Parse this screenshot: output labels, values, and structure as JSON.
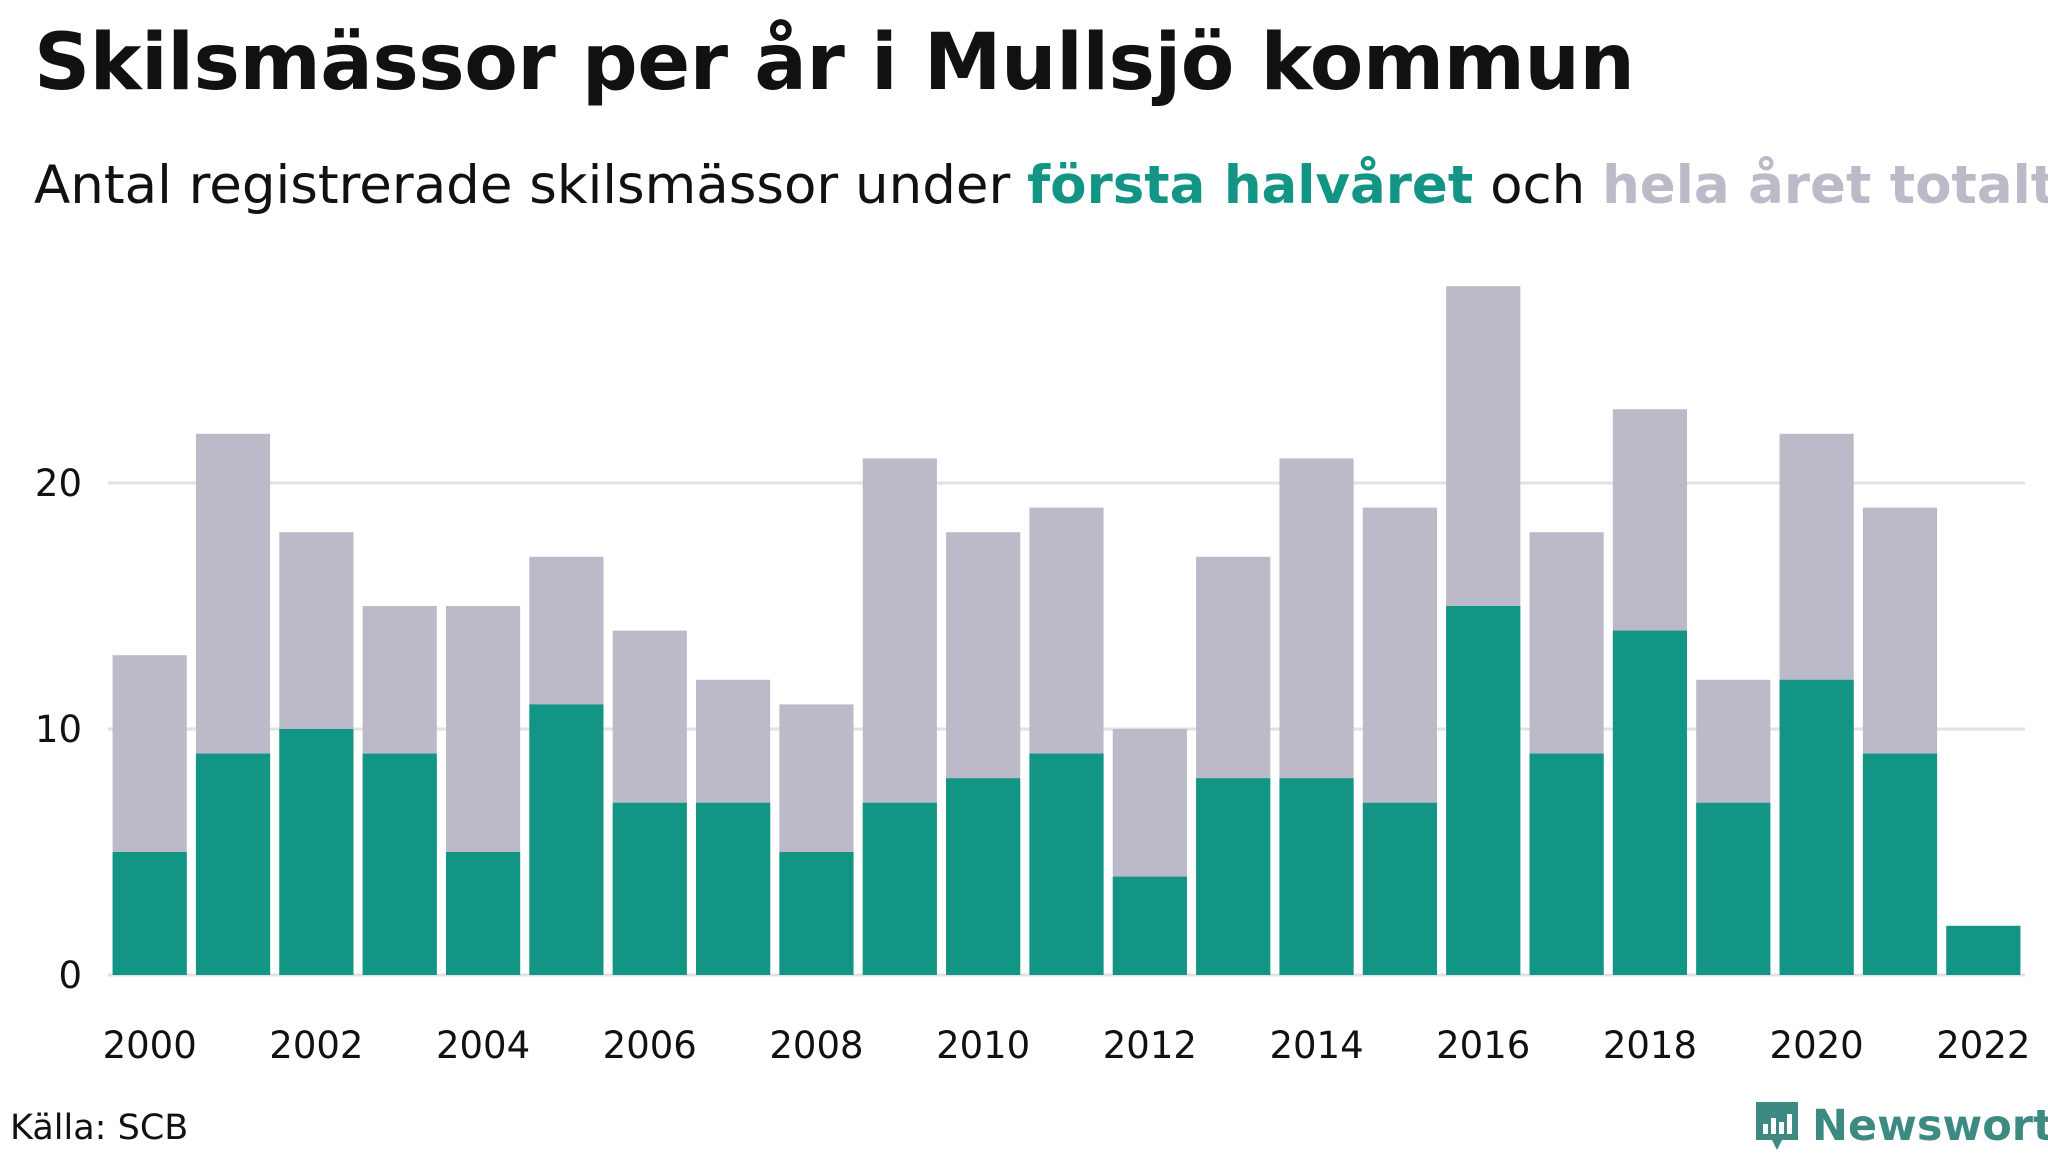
{
  "title": "Skilsmässor per år i Mullsjö kommun",
  "subtitle": {
    "prefix": "Antal registrerade skilsmässor under ",
    "series1": "första halvåret",
    "middle": " och ",
    "series2": "hela året totalt",
    "suffix": "."
  },
  "source": "Källa: SCB",
  "brand": "Newsworthy",
  "colors": {
    "first_half": "#139585",
    "full_year": "#bcbac8",
    "grid": "#e2e2e2",
    "brand": "#3c8a82"
  },
  "chart_data": {
    "type": "bar",
    "stacking": "overlay",
    "x": [
      2000,
      2001,
      2002,
      2003,
      2004,
      2005,
      2006,
      2007,
      2008,
      2009,
      2010,
      2011,
      2012,
      2013,
      2014,
      2015,
      2016,
      2017,
      2018,
      2019,
      2020,
      2021,
      2022
    ],
    "series": [
      {
        "name": "hela året totalt",
        "color": "#bcbac8",
        "values": [
          13,
          22,
          18,
          15,
          15,
          17,
          14,
          12,
          11,
          21,
          18,
          19,
          10,
          17,
          21,
          19,
          28,
          18,
          23,
          12,
          22,
          19,
          null
        ]
      },
      {
        "name": "första halvåret",
        "color": "#139585",
        "values": [
          5,
          9,
          10,
          9,
          5,
          11,
          7,
          7,
          5,
          7,
          8,
          9,
          4,
          8,
          8,
          7,
          15,
          9,
          14,
          7,
          12,
          9,
          2
        ]
      }
    ],
    "y_ticks": [
      0,
      10,
      20
    ],
    "x_ticks": [
      2000,
      2002,
      2004,
      2006,
      2008,
      2010,
      2012,
      2014,
      2016,
      2018,
      2020,
      2022
    ],
    "ylim": [
      0,
      28
    ],
    "grid": true,
    "xlabel": "",
    "ylabel": ""
  }
}
